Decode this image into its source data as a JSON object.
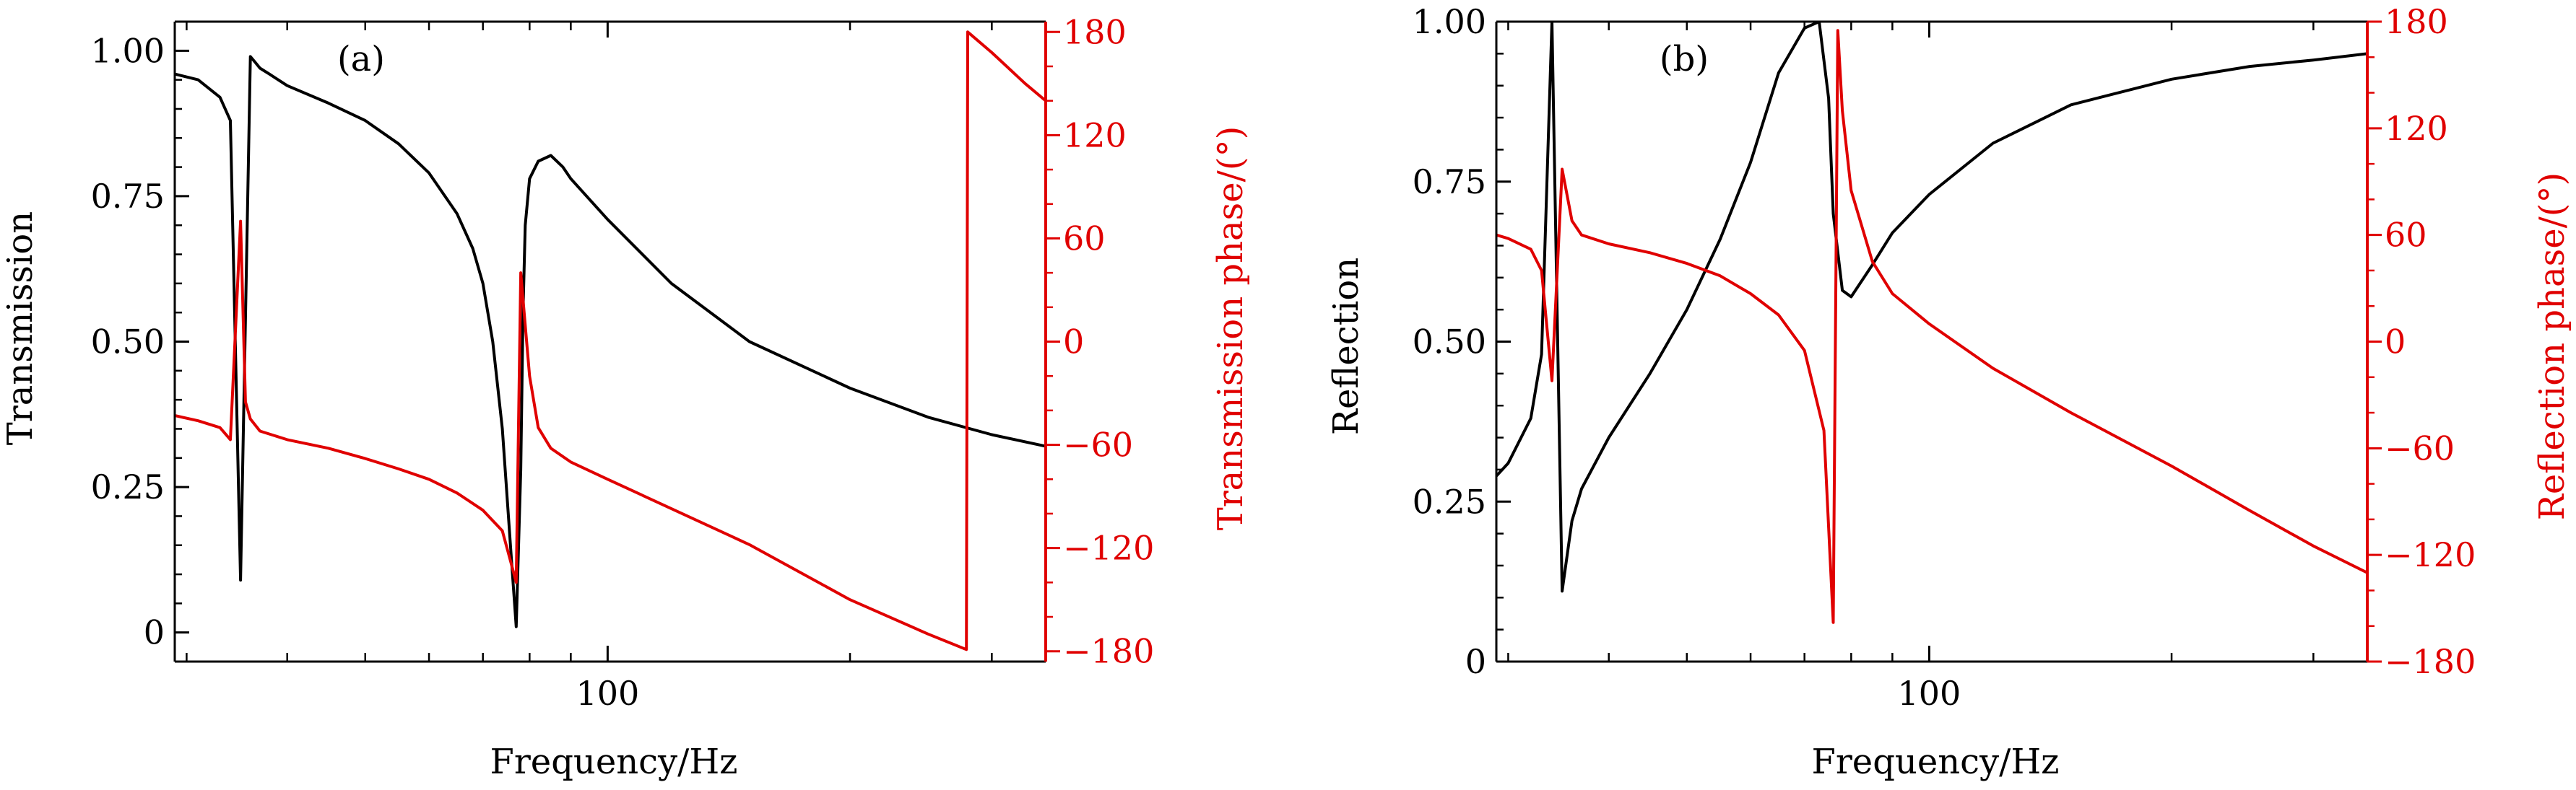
{
  "chart_data": [
    {
      "panel_label": "(a)",
      "type": "line",
      "xlabel": "Frequency/Hz",
      "ylabel_left": "Transmission",
      "ylabel_right": "Transmission phase/(°)",
      "x_scale": "log",
      "xlim": [
        29,
        350
      ],
      "x_tick_labels": [
        "100"
      ],
      "ylim_left": [
        -0.05,
        1.05
      ],
      "y_ticks_left": [
        "0",
        "0.25",
        "0.50",
        "0.75",
        "1.00"
      ],
      "ylim_right": [
        -186,
        186
      ],
      "y_ticks_right": [
        "−180",
        "−120",
        "−60",
        "0",
        "60",
        "120",
        "180"
      ],
      "colors": {
        "left": "#000000",
        "right": "#e00000"
      },
      "series": [
        {
          "axis": "left",
          "x": [
            29,
            31,
            33,
            34,
            35,
            36,
            36.5,
            37,
            38,
            40,
            45,
            50,
            55,
            60,
            65,
            68,
            70,
            72,
            74,
            76,
            77,
            78,
            78.5,
            79,
            80,
            82,
            85,
            88,
            90,
            100,
            120,
            150,
            200,
            250,
            300,
            350
          ],
          "y": [
            0.96,
            0.95,
            0.92,
            0.88,
            0.09,
            0.99,
            0.98,
            0.97,
            0.96,
            0.94,
            0.91,
            0.88,
            0.84,
            0.79,
            0.72,
            0.66,
            0.6,
            0.5,
            0.35,
            0.12,
            0.01,
            0.28,
            0.55,
            0.7,
            0.78,
            0.81,
            0.82,
            0.8,
            0.78,
            0.71,
            0.6,
            0.5,
            0.42,
            0.37,
            0.34,
            0.32
          ]
        },
        {
          "axis": "right",
          "x": [
            29,
            31,
            33,
            34,
            35,
            35.5,
            36,
            37,
            40,
            45,
            50,
            55,
            60,
            65,
            70,
            74,
            76,
            77,
            78,
            80,
            82,
            85,
            90,
            100,
            150,
            200,
            250,
            279,
            280,
            300,
            330,
            350
          ],
          "y": [
            -43,
            -46,
            -50,
            -57,
            70,
            -35,
            -45,
            -52,
            -57,
            -62,
            -68,
            -74,
            -80,
            -88,
            -98,
            -110,
            -130,
            -140,
            40,
            -20,
            -50,
            -62,
            -70,
            -80,
            -118,
            -150,
            -170,
            -179,
            180,
            168,
            150,
            140
          ]
        }
      ]
    },
    {
      "panel_label": "(b)",
      "type": "line",
      "xlabel": "Frequency/Hz",
      "ylabel_left": "Reflection",
      "ylabel_right": "Reflection phase/(°)",
      "x_scale": "log",
      "xlim": [
        29,
        350
      ],
      "x_tick_labels": [
        "100"
      ],
      "ylim_left": [
        0,
        1.0
      ],
      "y_ticks_left": [
        "0",
        "0.25",
        "0.50",
        "0.75",
        "1.00"
      ],
      "ylim_right": [
        -180,
        180
      ],
      "y_ticks_right": [
        "−180",
        "−120",
        "−60",
        "0",
        "60",
        "120",
        "180"
      ],
      "colors": {
        "left": "#000000",
        "right": "#e00000"
      },
      "series": [
        {
          "axis": "left",
          "x": [
            29,
            30,
            32,
            33,
            34,
            35,
            36,
            37,
            40,
            45,
            50,
            55,
            60,
            65,
            70,
            73,
            75,
            76,
            78,
            80,
            85,
            90,
            100,
            120,
            150,
            200,
            250,
            300,
            350
          ],
          "y": [
            0.29,
            0.31,
            0.38,
            0.48,
            1.0,
            0.11,
            0.22,
            0.27,
            0.35,
            0.45,
            0.55,
            0.66,
            0.78,
            0.92,
            0.99,
            1.0,
            0.88,
            0.7,
            0.58,
            0.57,
            0.62,
            0.67,
            0.73,
            0.81,
            0.87,
            0.91,
            0.93,
            0.94,
            0.95
          ]
        },
        {
          "axis": "right",
          "x": [
            29,
            30,
            32,
            33,
            34,
            35,
            36,
            37,
            40,
            45,
            50,
            55,
            60,
            65,
            70,
            74,
            76,
            77,
            78,
            80,
            85,
            90,
            100,
            120,
            150,
            200,
            250,
            300,
            350
          ],
          "y": [
            60,
            58,
            52,
            40,
            -22,
            97,
            68,
            60,
            55,
            50,
            44,
            37,
            27,
            15,
            -5,
            -50,
            -158,
            175,
            130,
            85,
            45,
            27,
            10,
            -15,
            -40,
            -70,
            -95,
            -115,
            -130
          ]
        }
      ]
    }
  ]
}
